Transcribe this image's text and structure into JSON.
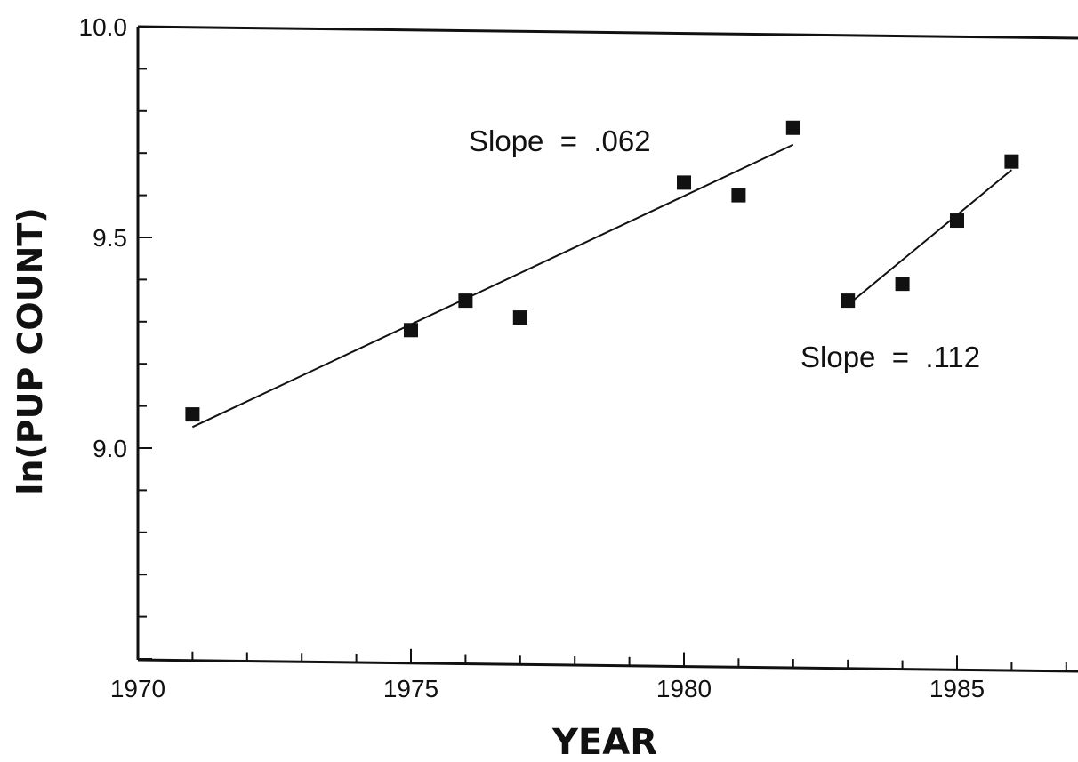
{
  "chart_data": {
    "type": "scatter",
    "title": "",
    "xlabel": "YEAR",
    "ylabel": "ln(PUP COUNT)",
    "xlim": [
      1970,
      1987
    ],
    "ylim": [
      8.5,
      10.0
    ],
    "x_ticks": [
      "1970",
      "1975",
      "1980",
      "1985"
    ],
    "y_ticks": [
      "9.0",
      "9.5",
      "10.0"
    ],
    "grid": false,
    "series": [
      {
        "x": [
          1971,
          1975,
          1976,
          1977,
          1980,
          1981,
          1982
        ],
        "y": [
          9.08,
          9.28,
          9.35,
          9.31,
          9.63,
          9.6,
          9.76
        ],
        "fit": {
          "x": [
            1971,
            1982
          ],
          "y": [
            9.05,
            9.72
          ]
        },
        "annotation": "Slope  =  .062"
      },
      {
        "x": [
          1983,
          1984,
          1985,
          1986
        ],
        "y": [
          9.35,
          9.39,
          9.54,
          9.68
        ],
        "fit": {
          "x": [
            1983,
            1986
          ],
          "y": [
            9.34,
            9.66
          ]
        },
        "annotation": "Slope  =  .112"
      }
    ]
  }
}
